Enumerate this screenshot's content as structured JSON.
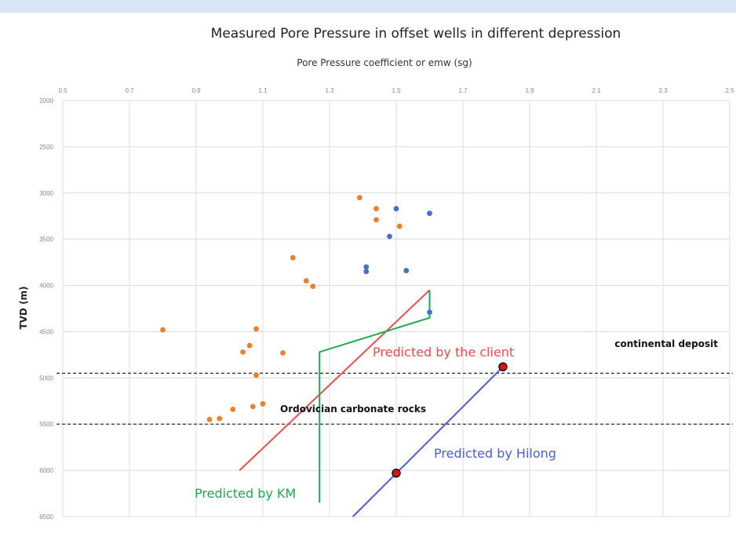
{
  "chart_data": {
    "type": "scatter",
    "title": "Measured Pore Pressure in offset wells in different depression",
    "subtitle": "Pore Pressure coefficient or emw (sg)",
    "xlabel": "Pore Pressure coefficient or emw (sg)",
    "ylabel": "TVD (m)",
    "xlim": [
      0.5,
      2.5
    ],
    "ylim": [
      2000,
      6500
    ],
    "y_inverted": true,
    "x_ticks": [
      0.5,
      0.7,
      0.9,
      1.1,
      1.3,
      1.5,
      1.7,
      1.9,
      2.1,
      2.3,
      2.5
    ],
    "y_ticks": [
      2000,
      2500,
      3000,
      3500,
      4000,
      4500,
      5000,
      5500,
      6000,
      6500
    ],
    "x_axis_position": "top",
    "grid": true,
    "colors": {
      "orange": "#ec7f2e",
      "blue": "#4472c4",
      "client": "#f04c4c",
      "km": "#1aaa50",
      "hilong": "#4a5ed6",
      "marker": "#e01010"
    },
    "series": [
      {
        "color": "orange",
        "points": [
          [
            1.39,
            3050
          ],
          [
            1.44,
            3170
          ],
          [
            1.44,
            3290
          ],
          [
            1.51,
            3360
          ],
          [
            1.19,
            3700
          ],
          [
            1.23,
            3950
          ],
          [
            1.25,
            4010
          ],
          [
            0.8,
            4480
          ],
          [
            1.08,
            4470
          ],
          [
            1.06,
            4650
          ],
          [
            1.04,
            4720
          ],
          [
            1.16,
            4730
          ],
          [
            1.08,
            4970
          ],
          [
            1.1,
            5280
          ],
          [
            1.07,
            5310
          ],
          [
            1.01,
            5340
          ],
          [
            0.97,
            5440
          ],
          [
            0.94,
            5450
          ]
        ]
      },
      {
        "color": "blue",
        "points": [
          [
            1.5,
            3170
          ],
          [
            1.6,
            3220
          ],
          [
            1.48,
            3470
          ],
          [
            1.41,
            3800
          ],
          [
            1.41,
            3850
          ],
          [
            1.53,
            3840
          ],
          [
            1.6,
            4290
          ]
        ]
      }
    ],
    "lines": [
      {
        "name": "Predicted by the client",
        "color": "client",
        "points": [
          [
            1.03,
            6000
          ],
          [
            1.6,
            4050
          ]
        ]
      },
      {
        "name": "Predicted by KM",
        "color": "km",
        "points": [
          [
            1.6,
            4050
          ],
          [
            1.6,
            4350
          ],
          [
            1.27,
            4720
          ],
          [
            1.27,
            6350
          ]
        ]
      },
      {
        "name": "Predicted by Hilong",
        "color": "hilong",
        "points": [
          [
            1.82,
            4880
          ],
          [
            1.37,
            6500
          ]
        ]
      }
    ],
    "markers": [
      [
        1.82,
        4880
      ],
      [
        1.5,
        6030
      ]
    ],
    "boundaries": [
      {
        "y": 4950,
        "label": "continental deposit"
      },
      {
        "y": 5500,
        "label": "Ordovician carbonate rocks"
      }
    ]
  }
}
